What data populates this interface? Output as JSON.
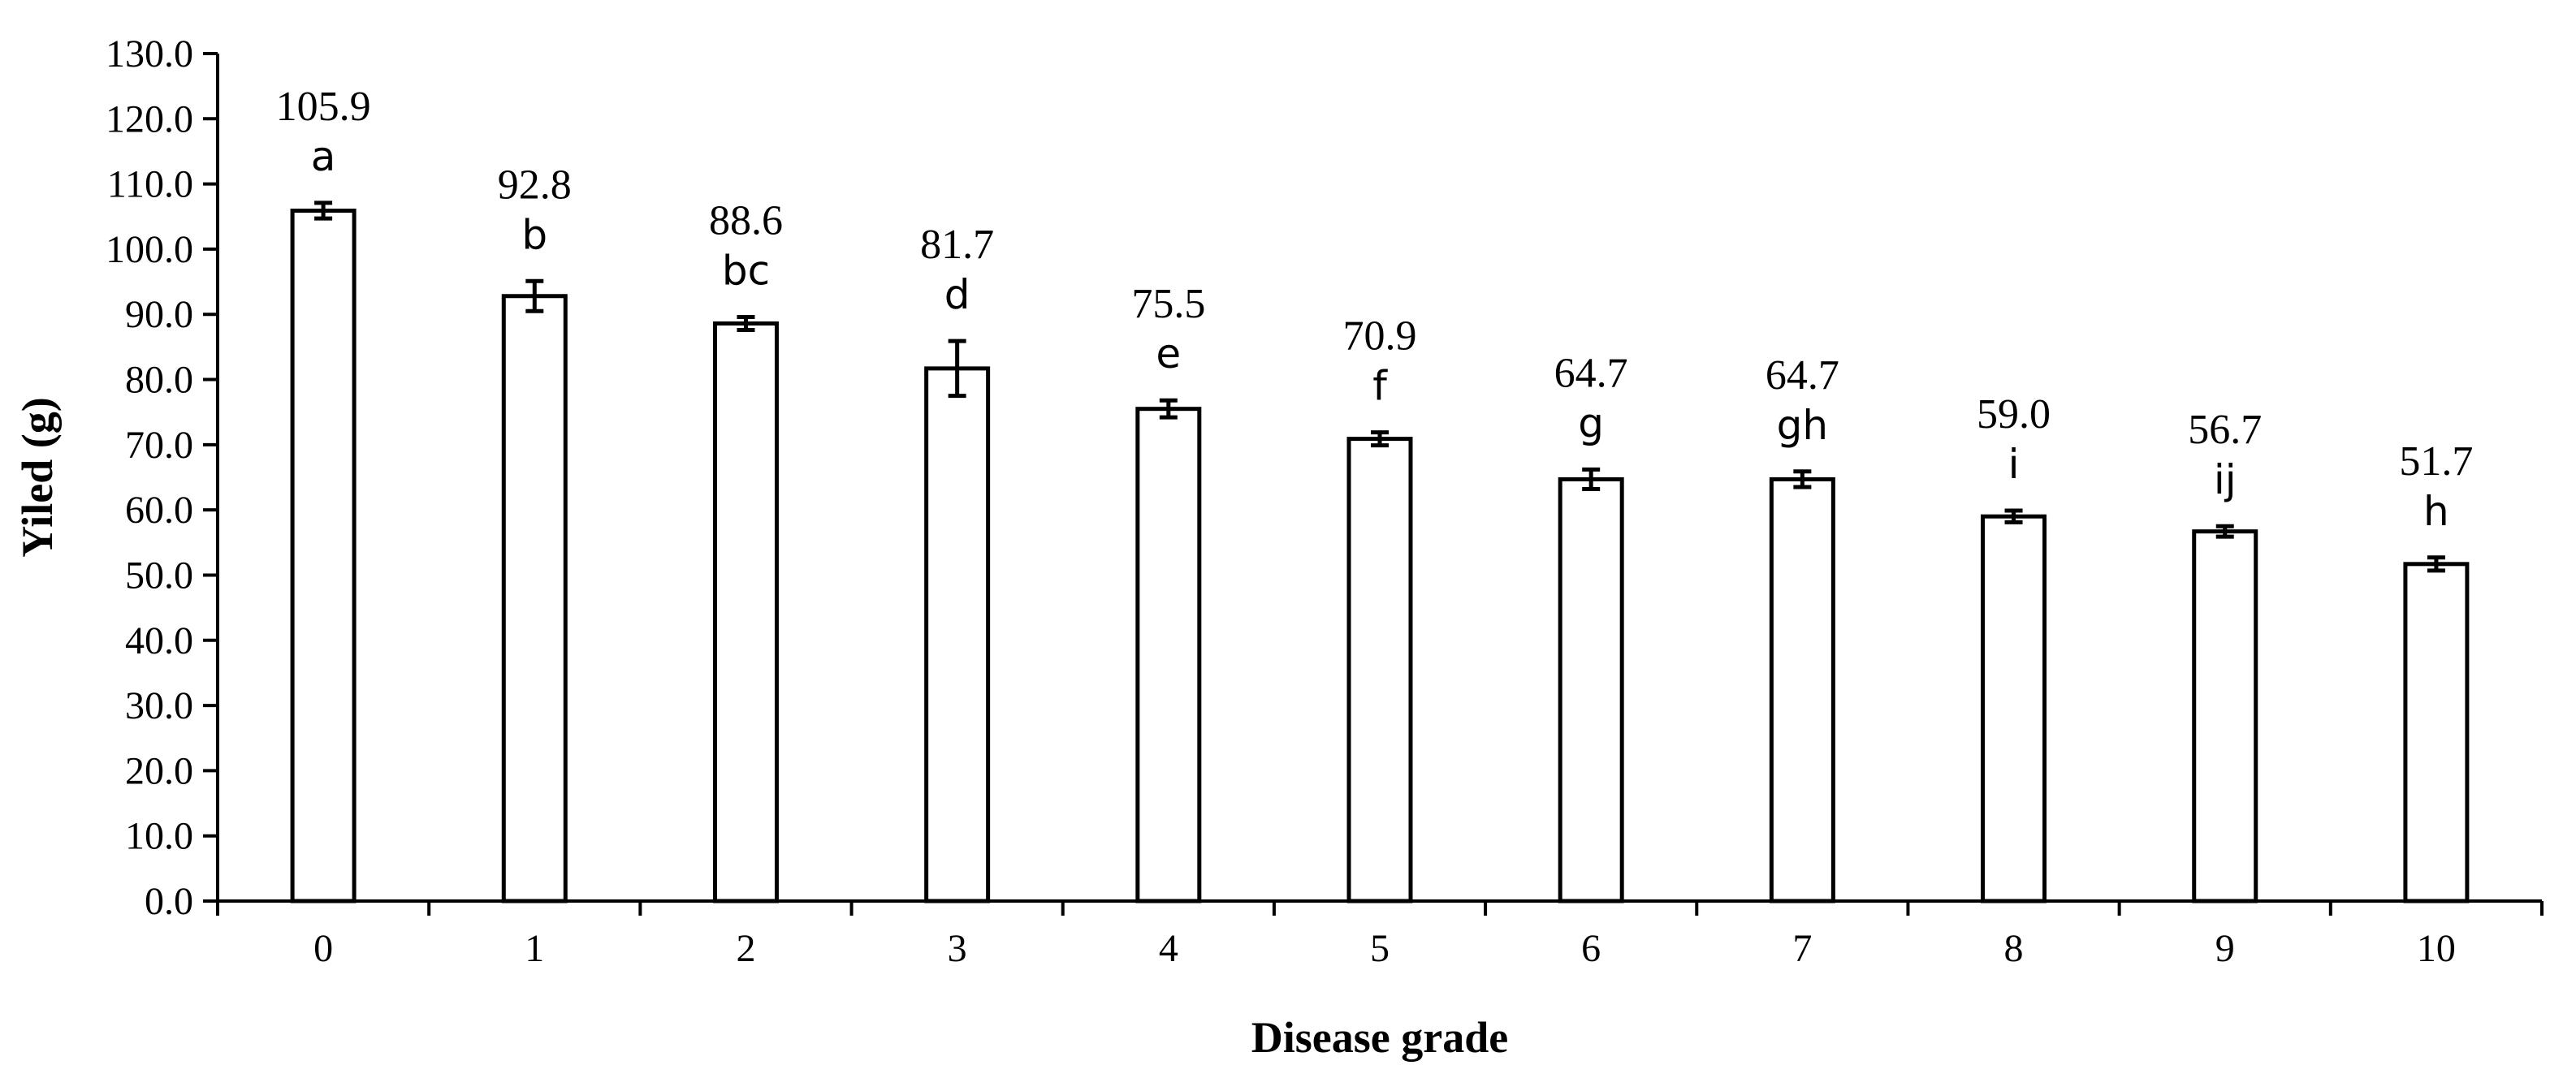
{
  "chart_data": {
    "type": "bar",
    "title": "",
    "xlabel": "Disease grade",
    "ylabel": "Yiled (g)",
    "ylim": [
      0,
      130
    ],
    "ytick_step": 10,
    "ytick_labels": [
      "0.0",
      "10.0",
      "20.0",
      "30.0",
      "40.0",
      "50.0",
      "60.0",
      "70.0",
      "80.0",
      "90.0",
      "100.0",
      "110.0",
      "120.0",
      "130.0"
    ],
    "categories": [
      "0",
      "1",
      "2",
      "3",
      "4",
      "5",
      "6",
      "7",
      "8",
      "9",
      "10"
    ],
    "values": [
      105.9,
      92.8,
      88.6,
      81.7,
      75.5,
      70.9,
      64.7,
      64.7,
      59.0,
      56.7,
      51.7
    ],
    "value_labels": [
      "105.9",
      "92.8",
      "88.6",
      "81.7",
      "75.5",
      "70.9",
      "64.7",
      "64.7",
      "59.0",
      "56.7",
      "51.7"
    ],
    "errors": [
      1.2,
      2.3,
      1.0,
      4.2,
      1.3,
      1.0,
      1.5,
      1.2,
      0.9,
      0.8,
      1.0
    ],
    "significance_letters": [
      "a",
      "b",
      "bc",
      "d",
      "e",
      "f",
      "g",
      "gh",
      "i",
      "ij",
      "h"
    ],
    "bar_fill": "#ffffff",
    "bar_stroke": "#000000",
    "grid": false,
    "legend": "none"
  }
}
